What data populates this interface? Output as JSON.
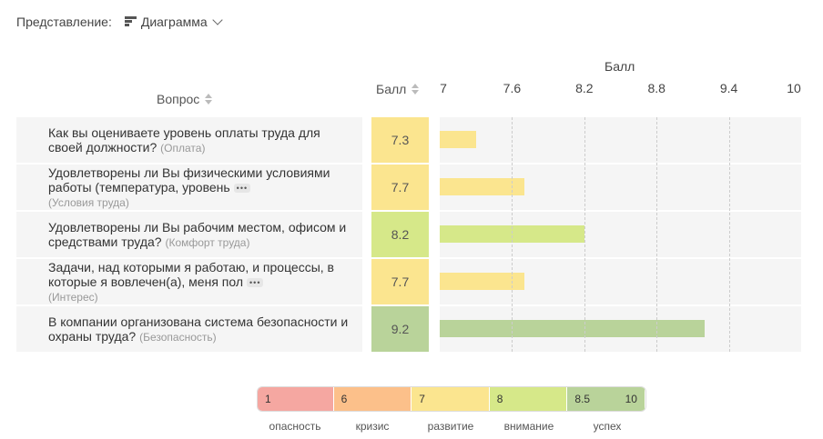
{
  "view": {
    "label": "Представление:",
    "mode": "Диаграмма"
  },
  "headers": {
    "question": "Вопрос",
    "score": "Балл",
    "axis_title": "Балл"
  },
  "colors": {
    "danger": "#f5a7a1",
    "crisis": "#fcc08a",
    "development": "#fbe58f",
    "attention": "#d6e889",
    "success": "#b9d39a"
  },
  "chart_data": {
    "type": "bar",
    "orientation": "horizontal",
    "xlabel": "Балл",
    "xlim": [
      7,
      10
    ],
    "ticks": [
      "7",
      "7.6",
      "8.2",
      "8.8",
      "9.4",
      "10"
    ],
    "tick_values": [
      7,
      7.6,
      8.2,
      8.8,
      9.4,
      10
    ],
    "grid": true,
    "categories": [
      "Как вы оцениваете уровень оплаты труда для своей должности?",
      "Удовлетворены ли Вы физическими условиями работы (температура, уровень",
      "Удовлетворены ли Вы рабочим местом, офисом и средствами труда?",
      "Задачи, над которыми я работаю, и процессы, в которые я вовлечен(а), меня пол",
      "В компании организована система безопасности и охраны труда?"
    ],
    "tags": [
      "(Оплата)",
      "(Условия труда)",
      "(Комфорт труда)",
      "(Интерес)",
      "(Безопасность)"
    ],
    "values": [
      7.3,
      7.7,
      8.2,
      7.7,
      9.2
    ],
    "value_labels": [
      "7.3",
      "7.7",
      "8.2",
      "7.7",
      "9.2"
    ],
    "bar_colors": [
      "#fbe58f",
      "#fbe58f",
      "#d6e889",
      "#fbe58f",
      "#b9d39a"
    ],
    "score_colors": [
      "#fbe58f",
      "#fbe58f",
      "#d6e889",
      "#fbe58f",
      "#b9d39a"
    ],
    "truncated": [
      false,
      true,
      false,
      true,
      false
    ]
  },
  "legend": [
    {
      "from": "1",
      "to": "",
      "label": "опасность",
      "color": "#f5a7a1",
      "span": 5
    },
    {
      "from": "6",
      "to": "",
      "label": "кризис",
      "color": "#fcc08a",
      "span": 1
    },
    {
      "from": "7",
      "to": "",
      "label": "развитие",
      "color": "#fbe58f",
      "span": 1
    },
    {
      "from": "8",
      "to": "",
      "label": "внимание",
      "color": "#d6e889",
      "span": 0.5
    },
    {
      "from": "8.5",
      "to": "10",
      "label": "успех",
      "color": "#b9d39a",
      "span": 1.5
    }
  ],
  "more_glyph": "•••"
}
